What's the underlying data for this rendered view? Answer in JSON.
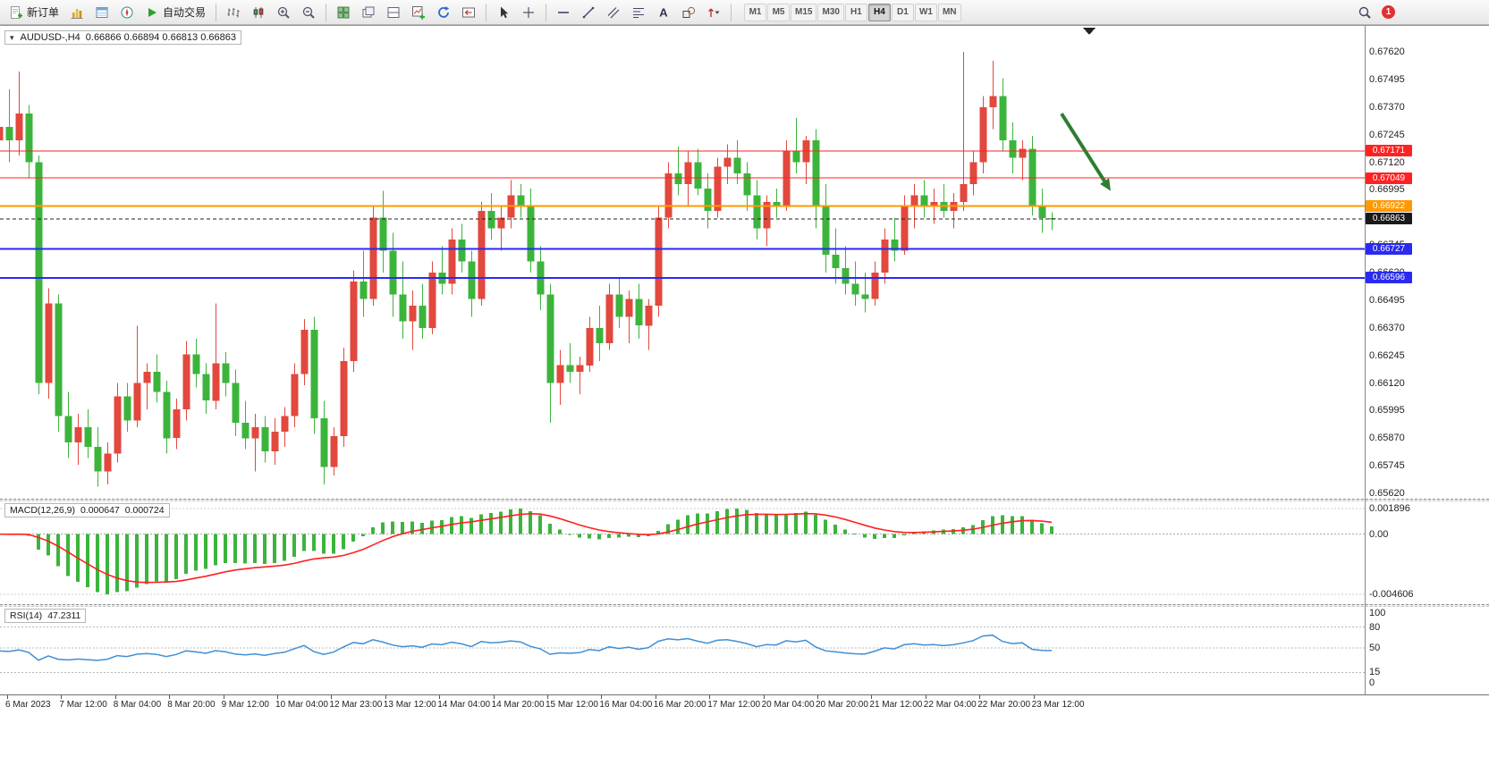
{
  "toolbar": {
    "new_order_label": "新订单",
    "auto_trading_label": "自动交易",
    "timeframes": [
      "M1",
      "M5",
      "M15",
      "M30",
      "H1",
      "H4",
      "D1",
      "W1",
      "MN"
    ],
    "active_timeframe": "H4",
    "notification_count": "1",
    "icons": [
      "new-order-icon",
      "market-watch-icon",
      "data-window-icon",
      "navigator-icon",
      "auto-trading-icon",
      "bars-chart-icon",
      "candlestick-chart-icon",
      "zoom-in-icon",
      "zoom-out-icon",
      "tile-windows-icon",
      "cascade-windows-icon",
      "split-window-icon",
      "new-chart-icon",
      "auto-scroll-icon",
      "chart-shift-icon",
      "cursor-icon",
      "crosshair-icon",
      "horizontal-line-icon",
      "trendline-icon",
      "channel-icon",
      "fibonacci-icon",
      "text-icon",
      "shapes-icon",
      "arrows-icon",
      "search-icon",
      "notification-badge"
    ]
  },
  "chart": {
    "symbol_label": "AUDUSD-,H4",
    "ohlc_label": "0.66866 0.66894 0.66813 0.66863"
  },
  "chart_data": {
    "type": "candlestick",
    "symbol": "AUDUSD",
    "timeframe": "H4",
    "colors": {
      "up": "#e2483d",
      "down": "#3cb43c"
    },
    "y_axis": {
      "min": 0.6562,
      "max": 0.6762,
      "labels": [
        "0.67620",
        "0.67495",
        "0.67370",
        "0.67245",
        "0.67120",
        "0.66995",
        "0.66870",
        "0.66745",
        "0.66620",
        "0.66495",
        "0.66370",
        "0.66245",
        "0.66120",
        "0.65995",
        "0.65870",
        "0.65745",
        "0.65620"
      ]
    },
    "x_labels": [
      "6 Mar 2023",
      "7 Mar 12:00",
      "8 Mar 04:00",
      "8 Mar 20:00",
      "9 Mar 12:00",
      "10 Mar 04:00",
      "12 Mar 23:00",
      "13 Mar 12:00",
      "14 Mar 04:00",
      "14 Mar 20:00",
      "15 Mar 12:00",
      "16 Mar 04:00",
      "16 Mar 20:00",
      "17 Mar 12:00",
      "20 Mar 04:00",
      "20 Mar 20:00",
      "21 Mar 12:00",
      "22 Mar 04:00",
      "22 Mar 20:00",
      "23 Mar 12:00"
    ],
    "candles": [
      [
        0.6722,
        0.674,
        0.6712,
        0.6728
      ],
      [
        0.6728,
        0.6745,
        0.6712,
        0.6722
      ],
      [
        0.6722,
        0.6753,
        0.6715,
        0.6734
      ],
      [
        0.6734,
        0.6738,
        0.6705,
        0.6712
      ],
      [
        0.6712,
        0.6715,
        0.6607,
        0.6612
      ],
      [
        0.6612,
        0.6655,
        0.6605,
        0.6648
      ],
      [
        0.6648,
        0.6652,
        0.659,
        0.6597
      ],
      [
        0.6597,
        0.6608,
        0.6578,
        0.6585
      ],
      [
        0.6585,
        0.6598,
        0.6575,
        0.6592
      ],
      [
        0.6592,
        0.66,
        0.6578,
        0.6583
      ],
      [
        0.6583,
        0.6592,
        0.6565,
        0.6572
      ],
      [
        0.6572,
        0.6585,
        0.6566,
        0.658
      ],
      [
        0.658,
        0.6612,
        0.6576,
        0.6606
      ],
      [
        0.6606,
        0.6612,
        0.659,
        0.6595
      ],
      [
        0.6595,
        0.6638,
        0.6592,
        0.6612
      ],
      [
        0.6612,
        0.6621,
        0.66,
        0.6617
      ],
      [
        0.6617,
        0.6625,
        0.6603,
        0.6608
      ],
      [
        0.6608,
        0.6613,
        0.658,
        0.6587
      ],
      [
        0.6587,
        0.6605,
        0.6582,
        0.66
      ],
      [
        0.66,
        0.6631,
        0.6595,
        0.6625
      ],
      [
        0.6625,
        0.6632,
        0.661,
        0.6616
      ],
      [
        0.6616,
        0.6621,
        0.6598,
        0.6604
      ],
      [
        0.6604,
        0.6648,
        0.66,
        0.6621
      ],
      [
        0.6621,
        0.6626,
        0.6606,
        0.6612
      ],
      [
        0.6612,
        0.6618,
        0.6588,
        0.6594
      ],
      [
        0.6594,
        0.6604,
        0.6582,
        0.6587
      ],
      [
        0.6587,
        0.6598,
        0.6572,
        0.6592
      ],
      [
        0.6592,
        0.6597,
        0.6576,
        0.6581
      ],
      [
        0.6581,
        0.6596,
        0.6575,
        0.659
      ],
      [
        0.659,
        0.6601,
        0.6583,
        0.6597
      ],
      [
        0.6597,
        0.6621,
        0.6592,
        0.6616
      ],
      [
        0.6616,
        0.6641,
        0.6611,
        0.6636
      ],
      [
        0.6636,
        0.6642,
        0.6589,
        0.6596
      ],
      [
        0.6596,
        0.6604,
        0.6566,
        0.6574
      ],
      [
        0.6574,
        0.6592,
        0.657,
        0.6588
      ],
      [
        0.6588,
        0.6628,
        0.6583,
        0.6622
      ],
      [
        0.6622,
        0.6663,
        0.6617,
        0.6658
      ],
      [
        0.6658,
        0.6672,
        0.6642,
        0.665
      ],
      [
        0.665,
        0.6692,
        0.6647,
        0.6687
      ],
      [
        0.6687,
        0.6699,
        0.6662,
        0.6672
      ],
      [
        0.6672,
        0.668,
        0.6642,
        0.6652
      ],
      [
        0.6652,
        0.6667,
        0.6632,
        0.664
      ],
      [
        0.664,
        0.6654,
        0.6627,
        0.6647
      ],
      [
        0.6647,
        0.6657,
        0.6632,
        0.6637
      ],
      [
        0.6637,
        0.6667,
        0.6634,
        0.6662
      ],
      [
        0.6662,
        0.6674,
        0.6652,
        0.6657
      ],
      [
        0.6657,
        0.6682,
        0.6652,
        0.6677
      ],
      [
        0.6677,
        0.6684,
        0.6662,
        0.6667
      ],
      [
        0.6667,
        0.6672,
        0.6642,
        0.665
      ],
      [
        0.665,
        0.6694,
        0.6647,
        0.669
      ],
      [
        0.669,
        0.6698,
        0.6677,
        0.6682
      ],
      [
        0.6682,
        0.6692,
        0.6672,
        0.6687
      ],
      [
        0.6687,
        0.6704,
        0.6682,
        0.6697
      ],
      [
        0.6697,
        0.6702,
        0.6687,
        0.6692
      ],
      [
        0.6692,
        0.67,
        0.6662,
        0.6667
      ],
      [
        0.6667,
        0.6674,
        0.6645,
        0.6652
      ],
      [
        0.6652,
        0.6657,
        0.6594,
        0.6612
      ],
      [
        0.6612,
        0.6627,
        0.6602,
        0.662
      ],
      [
        0.662,
        0.663,
        0.6612,
        0.6617
      ],
      [
        0.6617,
        0.6624,
        0.6607,
        0.662
      ],
      [
        0.662,
        0.6642,
        0.6617,
        0.6637
      ],
      [
        0.6637,
        0.6647,
        0.6622,
        0.663
      ],
      [
        0.663,
        0.6657,
        0.6627,
        0.6652
      ],
      [
        0.6652,
        0.666,
        0.6637,
        0.6642
      ],
      [
        0.6642,
        0.6654,
        0.663,
        0.665
      ],
      [
        0.665,
        0.6657,
        0.6632,
        0.6638
      ],
      [
        0.6638,
        0.665,
        0.6627,
        0.6647
      ],
      [
        0.6647,
        0.6692,
        0.6642,
        0.6687
      ],
      [
        0.6687,
        0.6712,
        0.6682,
        0.6707
      ],
      [
        0.6707,
        0.6719,
        0.6697,
        0.6702
      ],
      [
        0.6702,
        0.6717,
        0.6692,
        0.6712
      ],
      [
        0.6712,
        0.6718,
        0.6697,
        0.67
      ],
      [
        0.67,
        0.6707,
        0.6682,
        0.669
      ],
      [
        0.669,
        0.6714,
        0.6687,
        0.671
      ],
      [
        0.671,
        0.672,
        0.6702,
        0.6714
      ],
      [
        0.6714,
        0.6722,
        0.6702,
        0.6707
      ],
      [
        0.6707,
        0.6712,
        0.669,
        0.6697
      ],
      [
        0.6697,
        0.6704,
        0.6677,
        0.6682
      ],
      [
        0.6682,
        0.6697,
        0.6674,
        0.6694
      ],
      [
        0.6694,
        0.67,
        0.6687,
        0.6692
      ],
      [
        0.6692,
        0.6722,
        0.669,
        0.6717
      ],
      [
        0.6717,
        0.6732,
        0.6707,
        0.6712
      ],
      [
        0.6712,
        0.6724,
        0.6702,
        0.6722
      ],
      [
        0.6722,
        0.6727,
        0.6682,
        0.6692
      ],
      [
        0.6692,
        0.6702,
        0.6662,
        0.667
      ],
      [
        0.667,
        0.6682,
        0.6657,
        0.6664
      ],
      [
        0.6664,
        0.6674,
        0.6652,
        0.6657
      ],
      [
        0.6657,
        0.6667,
        0.6647,
        0.6652
      ],
      [
        0.6652,
        0.6662,
        0.6644,
        0.665
      ],
      [
        0.665,
        0.6667,
        0.6647,
        0.6662
      ],
      [
        0.6662,
        0.6682,
        0.6657,
        0.6677
      ],
      [
        0.6677,
        0.6687,
        0.6667,
        0.6672
      ],
      [
        0.6672,
        0.6697,
        0.667,
        0.6692
      ],
      [
        0.6692,
        0.6702,
        0.6682,
        0.6697
      ],
      [
        0.6697,
        0.6704,
        0.6687,
        0.6692
      ],
      [
        0.6692,
        0.67,
        0.6684,
        0.6694
      ],
      [
        0.6694,
        0.6702,
        0.6687,
        0.669
      ],
      [
        0.669,
        0.6698,
        0.6682,
        0.6694
      ],
      [
        0.6694,
        0.6762,
        0.669,
        0.6702
      ],
      [
        0.6702,
        0.6717,
        0.6697,
        0.6712
      ],
      [
        0.6712,
        0.6742,
        0.6707,
        0.6737
      ],
      [
        0.6737,
        0.6758,
        0.6727,
        0.6742
      ],
      [
        0.6742,
        0.675,
        0.6717,
        0.6722
      ],
      [
        0.6722,
        0.673,
        0.6707,
        0.6714
      ],
      [
        0.6714,
        0.6722,
        0.6704,
        0.6718
      ],
      [
        0.6718,
        0.6724,
        0.6688,
        0.6692
      ],
      [
        0.6692,
        0.67,
        0.668,
        0.66866
      ],
      [
        0.66866,
        0.66894,
        0.66813,
        0.66863
      ]
    ],
    "hlines": [
      {
        "name": "resistance-1",
        "price": 0.67171,
        "label": "0.67171",
        "color": "#ff2222",
        "width": 1
      },
      {
        "name": "resistance-2",
        "price": 0.67049,
        "label": "0.67049",
        "color": "#ff2222",
        "width": 1
      },
      {
        "name": "pivot",
        "price": 0.66922,
        "label": "0.66922",
        "color": "#ff9900",
        "width": 2
      },
      {
        "name": "support-1",
        "price": 0.66727,
        "label": "0.66727",
        "color": "#2a2af0",
        "width": 2
      },
      {
        "name": "support-2",
        "price": 0.66596,
        "label": "0.66596",
        "color": "#2a2af0",
        "width": 2
      }
    ],
    "current_price": {
      "value": 0.66863,
      "label": "0.66863",
      "color": "#1a1a1a"
    },
    "annotation_arrow": {
      "from_index": 108,
      "from_price": 0.6734,
      "to_index": 113,
      "to_price": 0.6699,
      "color": "#2e7d32"
    },
    "indicators": {
      "macd": {
        "name_label": "MACD(12,26,9)",
        "value1": "0.000647",
        "value2": "0.000724",
        "fast": 12,
        "slow": 26,
        "signal": 9,
        "hist_color": "#3cb43c",
        "signal_color": "#ff2020",
        "axis_labels": [
          "0.001896",
          "0.00",
          "-0.004606"
        ]
      },
      "rsi": {
        "name_label": "RSI(14)",
        "value": "47.2311",
        "period": 14,
        "line_color": "#3f8fd6",
        "levels": [
          80,
          50,
          15
        ],
        "axis_values": [
          100,
          80,
          50,
          15,
          0
        ],
        "axis_labels": [
          "100",
          "80",
          "50",
          "15",
          "0"
        ]
      }
    }
  }
}
